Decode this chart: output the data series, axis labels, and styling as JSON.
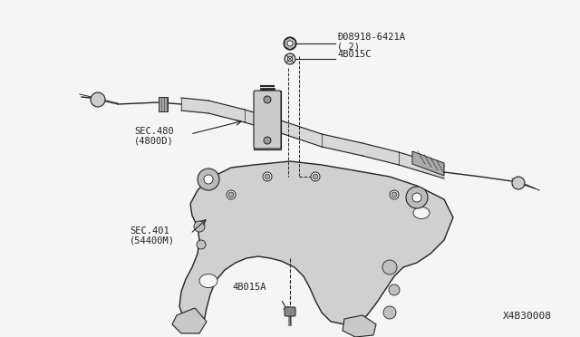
{
  "bg_color": "#f5f5f5",
  "line_color": "#222222",
  "diagram_id": "X4B30008",
  "labels": {
    "part1_num": "Ð08918-6421A",
    "part1_qty": "( 2)",
    "part2_num": "4B015C",
    "part3_num": "SEC.480",
    "part3_sub": "(4800D)",
    "part4_num": "SEC.401",
    "part4_sub": "(54400M)",
    "part5_num": "4B015A"
  },
  "font_size_label": 7.5,
  "font_size_id": 8
}
